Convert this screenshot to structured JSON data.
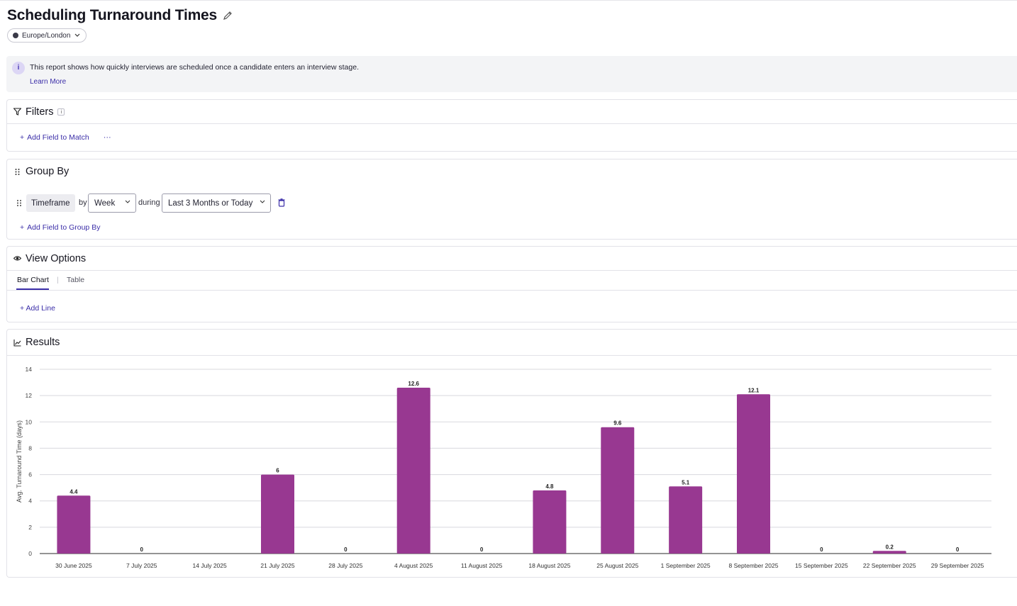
{
  "page": {
    "title": "Scheduling Turnaround Times",
    "timezone": "Europe/London"
  },
  "info": {
    "text": "This report shows how quickly interviews are scheduled once a candidate enters an interview stage.",
    "link": "Learn More"
  },
  "filters": {
    "title": "Filters",
    "add_field": "Add Field to Match",
    "more": "···"
  },
  "group_by": {
    "title": "Group By",
    "field_chip": "Timeframe",
    "by_label": "by",
    "interval_value": "Week",
    "during_label": "during",
    "range_value": "Last 3 Months or Today",
    "add_field": "Add Field to Group By"
  },
  "view_options": {
    "title": "View Options",
    "tabs": [
      {
        "label": "Bar Chart",
        "active": true
      },
      {
        "label": "Table",
        "active": false
      }
    ],
    "tab_separator": "|",
    "add_line": "+ Add Line"
  },
  "results": {
    "title": "Results"
  },
  "colors": {
    "accent": "#3b2ea8",
    "bar": "#983891"
  },
  "chart_data": {
    "type": "bar",
    "ylabel": "Avg. Turnaround Time (days)",
    "ylim": [
      0,
      14
    ],
    "yticks": [
      0,
      2,
      4,
      6,
      8,
      10,
      12,
      14
    ],
    "grid": true,
    "categories": [
      "30 June 2025",
      "7 July 2025",
      "14 July 2025",
      "21 July 2025",
      "28 July 2025",
      "4 August 2025",
      "11 August 2025",
      "18 August 2025",
      "25 August 2025",
      "1 September 2025",
      "8 September 2025",
      "15 September 2025",
      "22 September 2025",
      "29 September 2025"
    ],
    "values": [
      4.4,
      0,
      null,
      6,
      0,
      12.6,
      0,
      4.8,
      9.6,
      5.1,
      12.1,
      0,
      0.2,
      0
    ],
    "value_labels": [
      "4.4",
      "0",
      "",
      "6",
      "0",
      "12.6",
      "0",
      "4.8",
      "9.6",
      "5.1",
      "12.1",
      "0",
      "0.2",
      "0"
    ]
  }
}
